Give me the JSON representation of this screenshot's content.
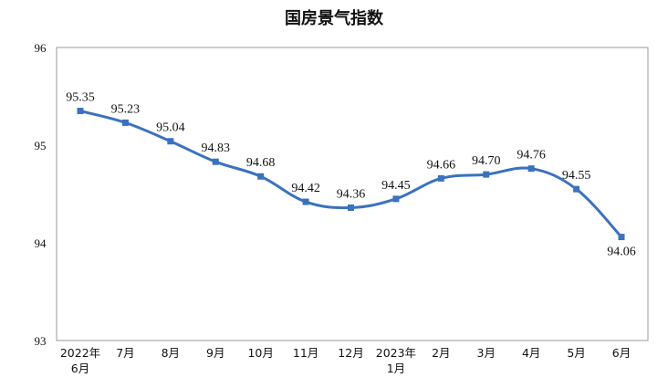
{
  "chart_data": {
    "type": "line",
    "title": "国房景气指数",
    "xlabel": "",
    "ylabel": "",
    "categories": [
      "2022年\n6月",
      "7月",
      "8月",
      "9月",
      "10月",
      "11月",
      "12月",
      "2023年\n1月",
      "2月",
      "3月",
      "4月",
      "5月",
      "6月"
    ],
    "values": [
      95.35,
      95.23,
      95.04,
      94.83,
      94.68,
      94.42,
      94.36,
      94.45,
      94.66,
      94.7,
      94.76,
      94.55,
      94.06
    ],
    "data_labels": [
      "95.35",
      "95.23",
      "95.04",
      "94.83",
      "94.68",
      "94.42",
      "94.36",
      "94.45",
      "94.66",
      "94.70",
      "94.76",
      "94.55",
      "94.06"
    ],
    "yticks": [
      "93",
      "94",
      "95",
      "96"
    ],
    "ylim": [
      93,
      96
    ],
    "grid": false,
    "legend": "none",
    "line_color": "#3A72BE"
  }
}
